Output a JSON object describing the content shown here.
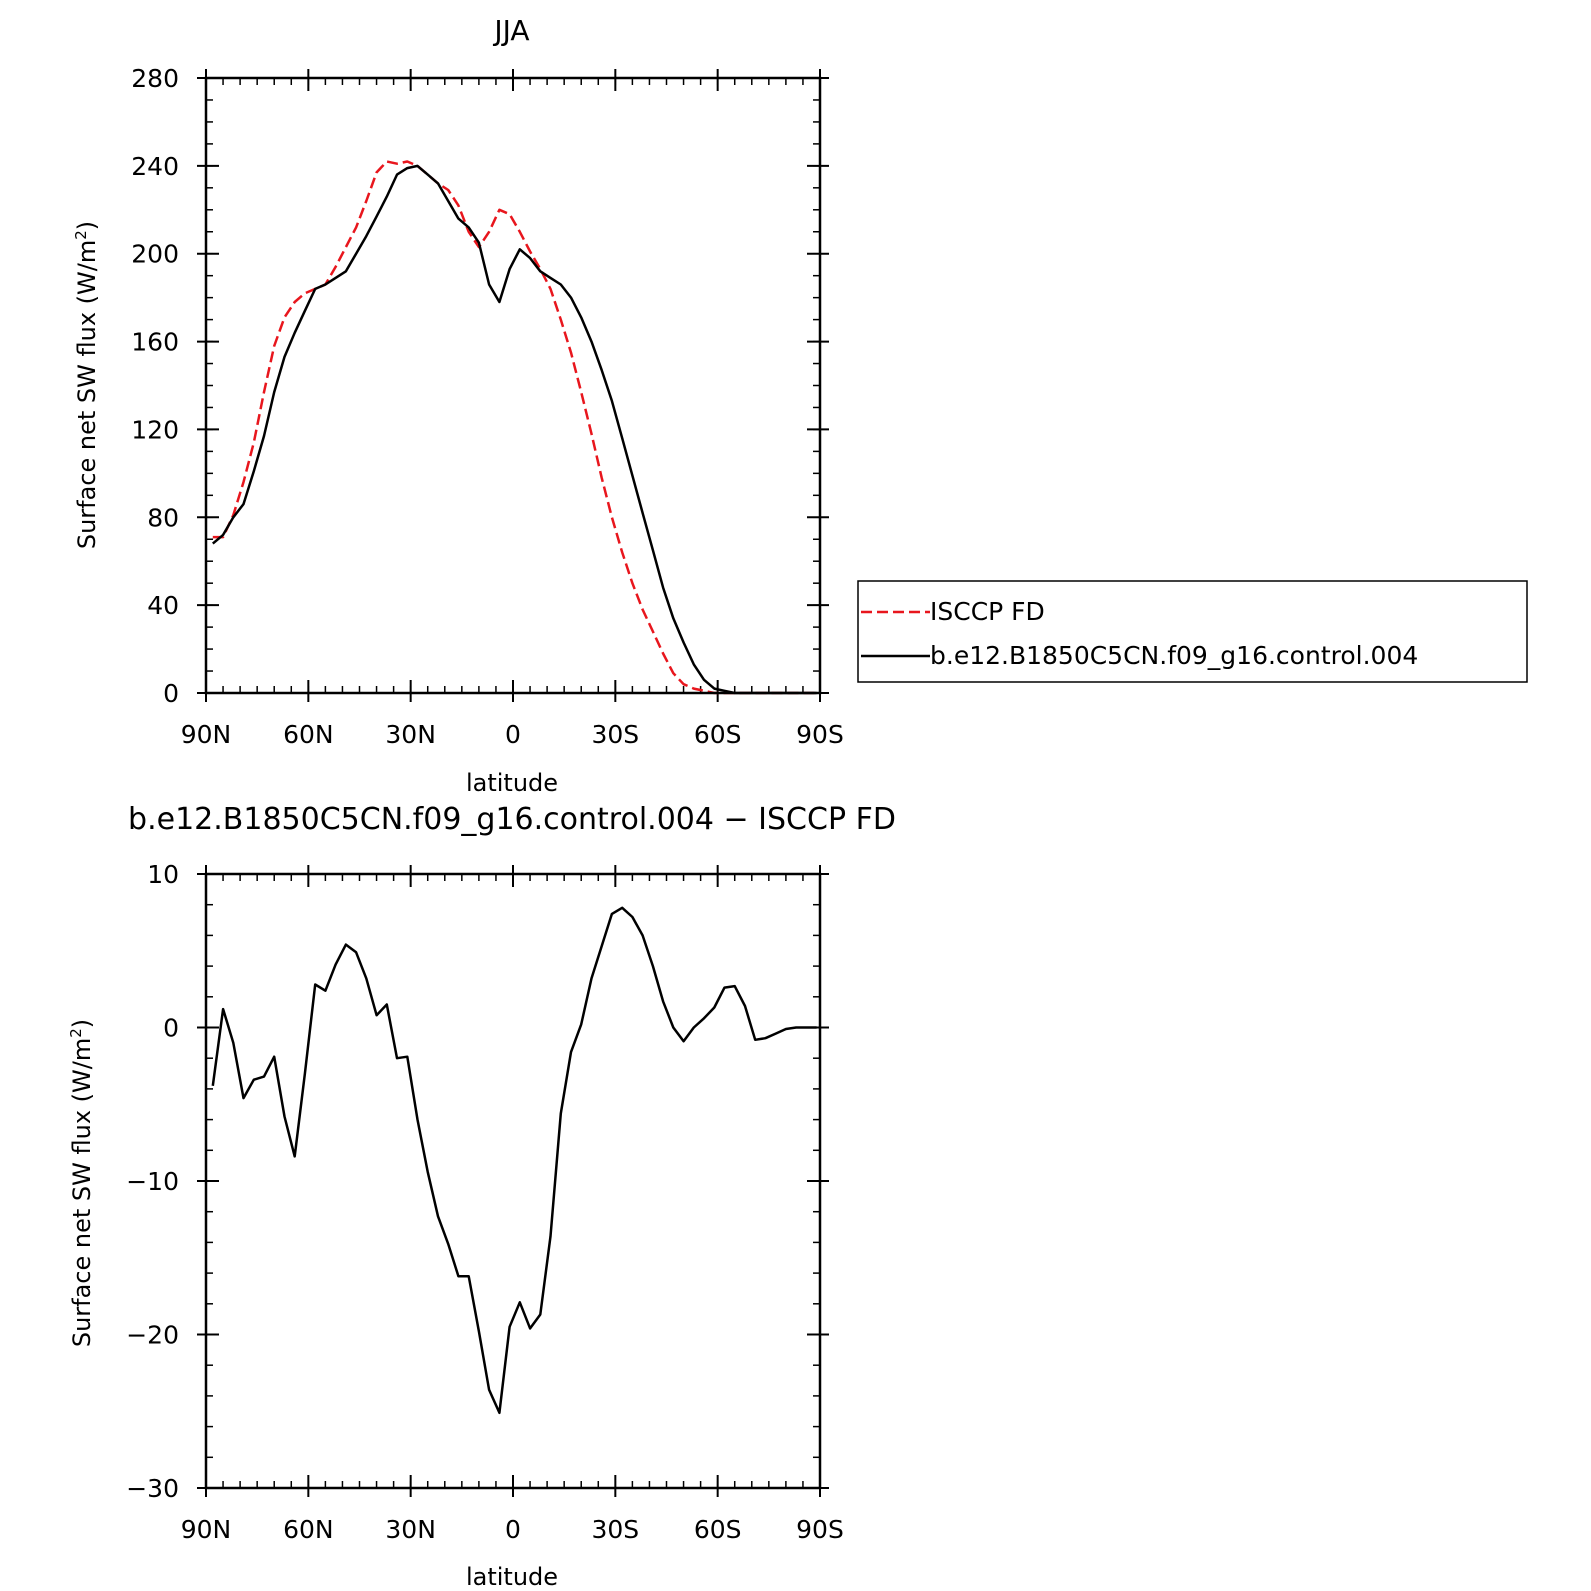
{
  "chart_data": [
    {
      "type": "line",
      "title": "JJA",
      "xlabel": "latitude",
      "ylabel_main": "Surface net SW flux (W/m",
      "ylabel_sup": "2",
      "ylabel_close": ")",
      "xlim": [
        90,
        -90
      ],
      "ylim": [
        0,
        280
      ],
      "x_ticks": [
        90,
        60,
        30,
        0,
        -30,
        -60,
        -90
      ],
      "x_tick_labels": [
        "90N",
        "60N",
        "30N",
        "0",
        "30S",
        "60S",
        "90S"
      ],
      "y_ticks": [
        0,
        40,
        80,
        120,
        160,
        200,
        240,
        280
      ],
      "y_tick_labels": [
        "0",
        "40",
        "80",
        "120",
        "160",
        "200",
        "240",
        "280"
      ],
      "grid": false,
      "legend_placement": "right-outside",
      "series": [
        {
          "name": "ISCCP FD",
          "color": "#e8161d",
          "dash": true,
          "x": [
            88,
            85,
            82,
            79,
            76,
            73,
            70,
            67,
            64,
            61,
            58,
            55,
            52,
            49,
            46,
            43,
            40,
            37,
            34,
            31,
            28,
            25,
            22,
            19,
            16,
            13,
            10,
            7,
            4,
            1,
            -2,
            -5,
            -8,
            -11,
            -14,
            -17,
            -20,
            -23,
            -26,
            -29,
            -32,
            -35,
            -38,
            -41,
            -44,
            -47,
            -50,
            -53,
            -56,
            -59,
            -62,
            -65,
            -68,
            -71,
            -74,
            -77,
            -80,
            -83,
            -86,
            -89
          ],
          "y": [
            71,
            71,
            81,
            96,
            114,
            137,
            158,
            171,
            178,
            182,
            184,
            186,
            194,
            203,
            212,
            224,
            237,
            242,
            241,
            242,
            240,
            236,
            232,
            229,
            222,
            210,
            203,
            210,
            220,
            218,
            210,
            201,
            193,
            184,
            170,
            155,
            137,
            118,
            98,
            80,
            64,
            50,
            38,
            28,
            18,
            9,
            4,
            2,
            1,
            0,
            0,
            0,
            0,
            0,
            0,
            0,
            0,
            0,
            0,
            0
          ]
        },
        {
          "name": "b.e12.B1850C5CN.f09_g16.control.004",
          "color": "#000000",
          "dash": false,
          "x": [
            88,
            85,
            82,
            79,
            76,
            73,
            70,
            67,
            64,
            61,
            58,
            55,
            52,
            49,
            46,
            43,
            40,
            37,
            34,
            31,
            28,
            25,
            22,
            19,
            16,
            13,
            10,
            7,
            4,
            1,
            -2,
            -5,
            -8,
            -11,
            -14,
            -17,
            -20,
            -23,
            -26,
            -29,
            -32,
            -35,
            -38,
            -41,
            -44,
            -47,
            -50,
            -53,
            -56,
            -59,
            -62,
            -65,
            -68,
            -71,
            -74,
            -77,
            -80,
            -83,
            -86,
            -89
          ],
          "y": [
            68,
            72,
            80,
            86,
            101,
            117,
            137,
            153,
            164,
            174,
            184,
            186,
            189,
            192,
            200,
            208,
            217,
            226,
            236,
            239,
            240,
            236,
            232,
            224,
            216,
            212,
            205,
            186,
            178,
            193,
            202,
            198,
            192,
            189,
            186,
            180,
            171,
            160,
            147,
            133,
            116,
            99,
            82,
            65,
            48,
            34,
            23,
            13,
            6,
            2,
            1,
            0,
            0,
            0,
            0,
            0,
            0,
            0,
            0,
            0
          ]
        }
      ]
    },
    {
      "type": "line",
      "title": "b.e12.B1850C5CN.f09_g16.control.004 − ISCCP FD",
      "xlabel": "latitude",
      "ylabel_main": "Surface net SW flux (W/m",
      "ylabel_sup": "2",
      "ylabel_close": ")",
      "xlim": [
        90,
        -90
      ],
      "ylim": [
        -30,
        10
      ],
      "x_ticks": [
        90,
        60,
        30,
        0,
        -30,
        -60,
        -90
      ],
      "x_tick_labels": [
        "90N",
        "60N",
        "30N",
        "0",
        "30S",
        "60S",
        "90S"
      ],
      "y_ticks": [
        -30,
        -20,
        -10,
        0,
        10
      ],
      "y_tick_labels": [
        "−30",
        "−20",
        "−10",
        "0",
        "10"
      ],
      "grid": false,
      "series": [
        {
          "color": "#000000",
          "dash": false,
          "x": [
            88,
            85,
            82,
            79,
            76,
            73,
            70,
            67,
            64,
            61,
            58,
            55,
            52,
            49,
            46,
            43,
            40,
            37,
            34,
            31,
            28,
            25,
            22,
            19,
            16,
            13,
            10,
            7,
            4,
            1,
            -2,
            -5,
            -8,
            -11,
            -14,
            -17,
            -20,
            -23,
            -26,
            -29,
            -32,
            -35,
            -38,
            -41,
            -44,
            -47,
            -50,
            -53,
            -56,
            -59,
            -62,
            -65,
            -68,
            -71,
            -74,
            -77,
            -80,
            -83,
            -86,
            -89
          ],
          "y": [
            -3.8,
            1.2,
            -1,
            -4.6,
            -3.4,
            -3.2,
            -1.9,
            -5.8,
            -8.4,
            -3,
            2.8,
            2.4,
            4.1,
            5.4,
            4.9,
            3.2,
            0.8,
            1.5,
            -2,
            -1.9,
            -6,
            -9.4,
            -12.3,
            -14.1,
            -16.2,
            -16.2,
            -19.8,
            -23.6,
            -25.1,
            -19.5,
            -17.9,
            -19.6,
            -18.7,
            -13.6,
            -5.6,
            -1.6,
            0.2,
            3.2,
            5.3,
            7.4,
            7.8,
            7.2,
            6,
            4,
            1.7,
            0,
            -0.9,
            0,
            0.6,
            1.3,
            2.6,
            2.7,
            1.4,
            -0.8,
            -0.7,
            -0.4,
            -0.1,
            0,
            0,
            0
          ]
        }
      ]
    }
  ]
}
